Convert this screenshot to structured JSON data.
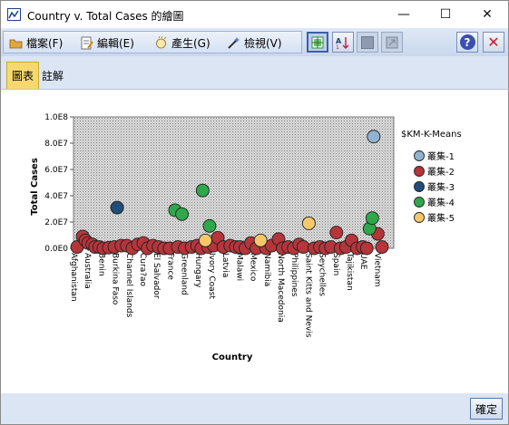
{
  "window": {
    "title": "Country v. Total Cases 的繪圖",
    "minimize": "—",
    "maximize": "☐",
    "close": "✕"
  },
  "menu": {
    "file": "檔案(F)",
    "edit": "編輯(E)",
    "generate": "產生(G)",
    "view": "檢視(V)"
  },
  "tabs": [
    "圖表",
    "註解"
  ],
  "footer": {
    "ok_label": "確定"
  },
  "colors": {
    "cluster1": "#8fb3d0",
    "cluster2": "#b5353b",
    "cluster3": "#1f4e79",
    "cluster4": "#2ea84a",
    "cluster5": "#f7c86a"
  },
  "chart_data": {
    "type": "scatter",
    "xlabel": "Country",
    "ylabel": "Total Cases",
    "ylim": [
      0,
      100000000
    ],
    "yticks": [
      "0.0E0",
      "2.0E7",
      "4.0E7",
      "6.0E7",
      "8.0E7",
      "1.0E8"
    ],
    "categories": [
      "Afghanistan",
      "Australia",
      "Benin",
      "Burkina Faso",
      "Channel Islands",
      "Cura?ao",
      "El Salvador",
      "France",
      "Greenland",
      "Hungary",
      "Ivory Coast",
      "Latvia",
      "Malawi",
      "Mexico",
      "Namibia",
      "North Macedonia",
      "Philippines",
      "Saint Kitts and Nevis",
      "Seychelles",
      "Spain",
      "Tajikistan",
      "UAE",
      "Vietnam"
    ],
    "legend": {
      "title": "$KM-K-Means",
      "placement": "right",
      "entries": [
        "叢集-1",
        "叢集-2",
        "叢集-3",
        "叢集-4",
        "叢集-5"
      ]
    },
    "grid": "hatched",
    "series": [
      {
        "name": "叢集-1",
        "points": [
          [
            21.7,
            85000000
          ]
        ]
      },
      {
        "name": "叢集-3",
        "points": [
          [
            3.1,
            31000000
          ]
        ]
      },
      {
        "name": "叢集-4",
        "points": [
          [
            7.3,
            29000000
          ],
          [
            7.8,
            26000000
          ],
          [
            9.3,
            44000000
          ],
          [
            9.8,
            17000000
          ],
          [
            21.4,
            15000000
          ],
          [
            21.6,
            23000000
          ]
        ]
      },
      {
        "name": "叢集-5",
        "points": [
          [
            9.5,
            6000000
          ],
          [
            13.5,
            6000000
          ],
          [
            17.0,
            19000000
          ]
        ]
      },
      {
        "name": "叢集-2",
        "points": [
          [
            0.2,
            1000000
          ],
          [
            0.6,
            9000000
          ],
          [
            0.8,
            6000000
          ],
          [
            1.0,
            4000000
          ],
          [
            1.3,
            3000000
          ],
          [
            1.5,
            1000000
          ],
          [
            1.8,
            1000000
          ],
          [
            2.1,
            0
          ],
          [
            2.5,
            500000
          ],
          [
            2.9,
            1000000
          ],
          [
            3.4,
            2000000
          ],
          [
            3.8,
            2000000
          ],
          [
            4.2,
            0
          ],
          [
            4.6,
            3000000
          ],
          [
            5.0,
            4000000
          ],
          [
            5.3,
            0
          ],
          [
            5.7,
            2000000
          ],
          [
            6.1,
            1000000
          ],
          [
            6.5,
            0
          ],
          [
            6.9,
            0
          ],
          [
            7.5,
            1000000
          ],
          [
            8.0,
            0
          ],
          [
            8.5,
            1000000
          ],
          [
            8.9,
            2000000
          ],
          [
            9.2,
            0
          ],
          [
            9.7,
            1000000
          ],
          [
            10.1,
            2000000
          ],
          [
            10.4,
            8000000
          ],
          [
            10.8,
            1000000
          ],
          [
            11.3,
            2000000
          ],
          [
            11.7,
            1000000
          ],
          [
            12.0,
            1000000
          ],
          [
            12.4,
            0
          ],
          [
            12.8,
            4000000
          ],
          [
            13.2,
            0
          ],
          [
            13.9,
            0
          ],
          [
            14.3,
            2000000
          ],
          [
            14.8,
            7000000
          ],
          [
            15.1,
            0
          ],
          [
            15.5,
            1000000
          ],
          [
            15.9,
            0
          ],
          [
            16.3,
            3000000
          ],
          [
            16.6,
            1000000
          ],
          [
            17.4,
            0
          ],
          [
            17.8,
            1000000
          ],
          [
            18.2,
            0
          ],
          [
            18.6,
            1000000
          ],
          [
            19.0,
            12000000
          ],
          [
            19.3,
            0
          ],
          [
            19.7,
            1000000
          ],
          [
            20.1,
            6000000
          ],
          [
            20.5,
            0
          ],
          [
            20.9,
            1000000
          ],
          [
            21.2,
            0
          ],
          [
            22.0,
            11000000
          ],
          [
            22.3,
            1000000
          ]
        ]
      }
    ]
  }
}
